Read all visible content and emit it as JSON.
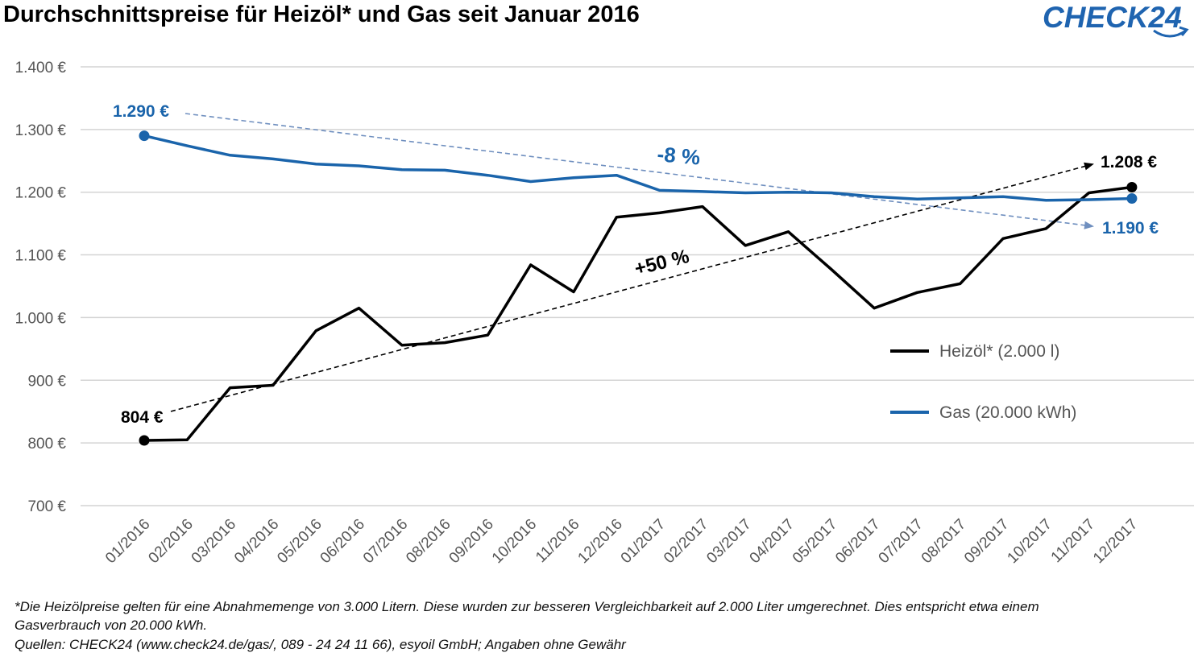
{
  "header": {
    "title": "Durchschnittspreise für Heizöl* und Gas seit Januar 2016",
    "logo_text": "CHECK24",
    "logo_color": "#1f64b0"
  },
  "footnotes": {
    "line1": "*Die Heizölpreise gelten für eine Abnahmemenge von 3.000 Litern. Diese wurden zur besseren Vergleichbarkeit auf 2.000 Liter umgerechnet. Dies entspricht etwa einem",
    "line2": "Gasverbrauch von 20.000 kWh.",
    "line3": "Quellen: CHECK24 (www.check24.de/gas/, 089 - 24 24 11 66), esyoil GmbH; Angaben ohne Gewähr"
  },
  "chart_data": {
    "type": "line",
    "title": "Durchschnittspreise für Heizöl* und Gas seit Januar 2016",
    "xlabel": "",
    "ylabel": "",
    "ylim": [
      700,
      1400
    ],
    "y_ticks": [
      700,
      800,
      900,
      1000,
      1100,
      1200,
      1300,
      1400
    ],
    "y_tick_labels": [
      "700 €",
      "800 €",
      "900 €",
      "1.000 €",
      "1.100 €",
      "1.200 €",
      "1.300 €",
      "1.400 €"
    ],
    "grid": true,
    "legend_position": "right",
    "categories": [
      "01/2016",
      "02/2016",
      "03/2016",
      "04/2016",
      "05/2016",
      "06/2016",
      "07/2016",
      "08/2016",
      "09/2016",
      "10/2016",
      "11/2016",
      "12/2016",
      "01/2017",
      "02/2017",
      "03/2017",
      "04/2017",
      "05/2017",
      "06/2017",
      "07/2017",
      "08/2017",
      "09/2017",
      "10/2017",
      "11/2017",
      "12/2017"
    ],
    "series": [
      {
        "name": "Heizöl* (2.000 l)",
        "color": "#000000",
        "values": [
          804,
          805,
          888,
          892,
          979,
          1015,
          956,
          960,
          972,
          1084,
          1041,
          1160,
          1167,
          1177,
          1115,
          1137,
          1077,
          1015,
          1040,
          1054,
          1126,
          1142,
          1199,
          1208
        ]
      },
      {
        "name": "Gas (20.000 kWh)",
        "color": "#1a64ab",
        "values": [
          1290,
          1274,
          1259,
          1253,
          1245,
          1242,
          1236,
          1235,
          1227,
          1217,
          1223,
          1227,
          1203,
          1201,
          1199,
          1200,
          1199,
          1193,
          1189,
          1191,
          1193,
          1187,
          1188,
          1190
        ]
      }
    ],
    "annotations": {
      "oil_start": "804 €",
      "oil_end": "1.208 €",
      "oil_change": "+50 %",
      "gas_start": "1.290 €",
      "gas_end": "1.190 €",
      "gas_change": "-8 %"
    }
  }
}
